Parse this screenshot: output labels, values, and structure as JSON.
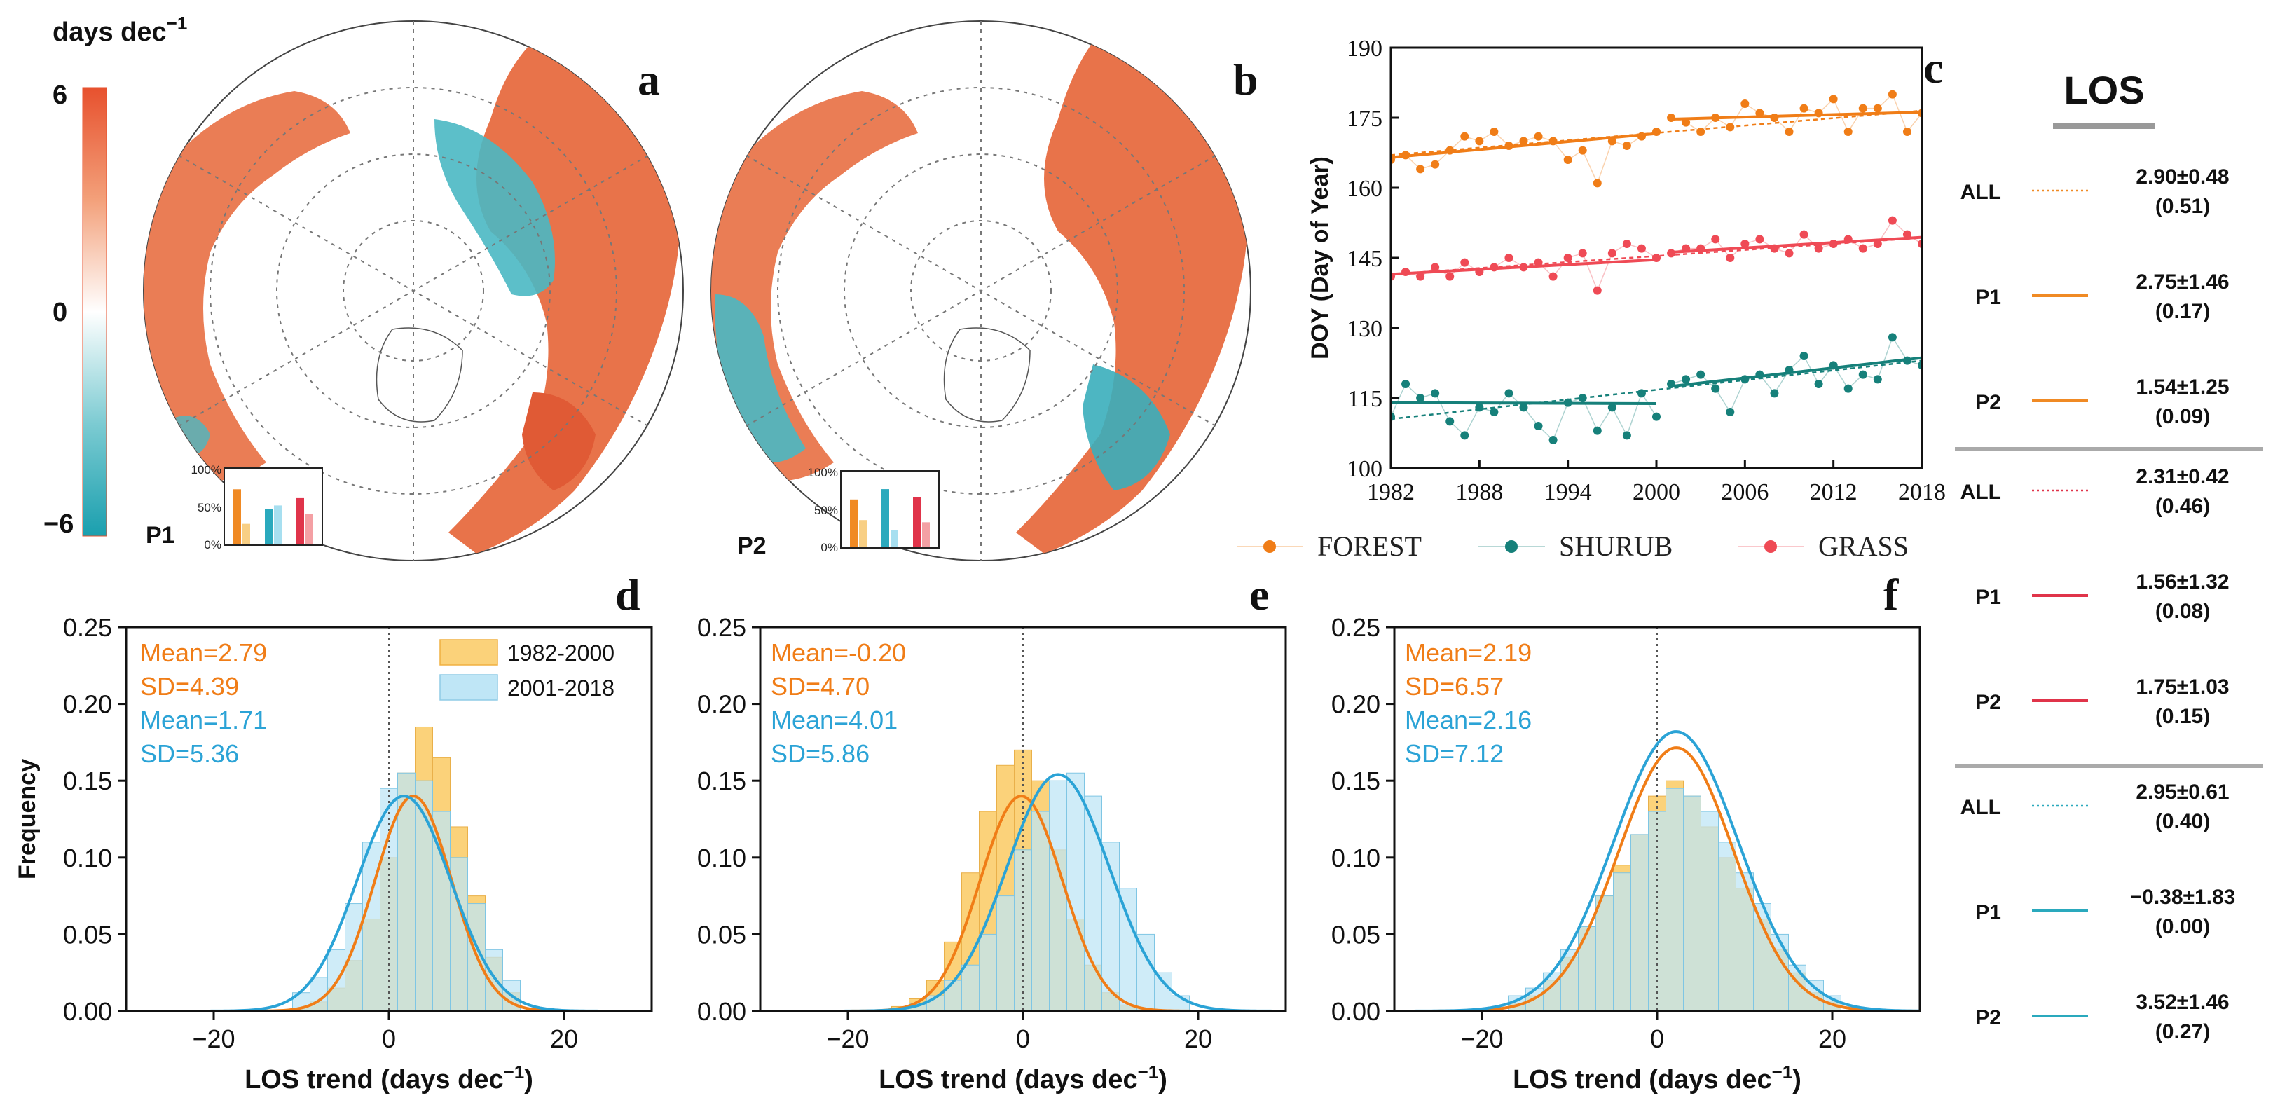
{
  "colorbar": {
    "title": "days dec",
    "title_sup": "−1",
    "max_label": "6",
    "mid_label": "0",
    "min_label": "−6",
    "colors": [
      "#e7512e",
      "#f08a5a",
      "#f9c6ae",
      "#ffffff",
      "#a6dde0",
      "#4ab8c3",
      "#1a9fae"
    ]
  },
  "maps": [
    {
      "panel": "a",
      "period": "P1",
      "inset": {
        "ticks": [
          "100%",
          "50%",
          "0%"
        ],
        "bars": [
          {
            "value": 0.74,
            "color": "#f08a24"
          },
          {
            "value": 0.27,
            "color": "#f8cf84"
          },
          {
            "value": 0.47,
            "color": "#2aa9bd"
          },
          {
            "value": 0.52,
            "color": "#a7dff0"
          },
          {
            "value": 0.62,
            "color": "#e0344a"
          },
          {
            "value": 0.4,
            "color": "#f4a0a4"
          }
        ]
      }
    },
    {
      "panel": "b",
      "period": "P2",
      "inset": {
        "ticks": [
          "100%",
          "50%",
          "0%"
        ],
        "bars": [
          {
            "value": 0.64,
            "color": "#f08a24"
          },
          {
            "value": 0.36,
            "color": "#f8cf84"
          },
          {
            "value": 0.78,
            "color": "#2aa9bd"
          },
          {
            "value": 0.22,
            "color": "#a7dff0"
          },
          {
            "value": 0.67,
            "color": "#e0344a"
          },
          {
            "value": 0.33,
            "color": "#f4a0a4"
          }
        ]
      }
    }
  ],
  "chart_data": [
    {
      "panel": "c",
      "type": "line",
      "ylabel": "DOY (Day of Year)",
      "xlim": [
        1982,
        2018
      ],
      "ylim": [
        100,
        190
      ],
      "xticks": [
        "1982",
        "1988",
        "1994",
        "2000",
        "2006",
        "2012",
        "2018"
      ],
      "yticks": [
        "100",
        "115",
        "130",
        "145",
        "160",
        "175",
        "190"
      ],
      "legend": [
        "FOREST",
        "SHURUB",
        "GRASS"
      ],
      "x": [
        1982,
        1983,
        1984,
        1985,
        1986,
        1987,
        1988,
        1989,
        1990,
        1991,
        1992,
        1993,
        1994,
        1995,
        1996,
        1997,
        1998,
        1999,
        2000,
        2001,
        2002,
        2003,
        2004,
        2005,
        2006,
        2007,
        2008,
        2009,
        2010,
        2011,
        2012,
        2013,
        2014,
        2015,
        2016,
        2017,
        2018
      ],
      "series": [
        {
          "name": "FOREST",
          "color": "#f07d17",
          "values": [
            166,
            167,
            164,
            165,
            168,
            171,
            170,
            172,
            169,
            170,
            171,
            170,
            166,
            168,
            161,
            170,
            169,
            171,
            172,
            175,
            174,
            172,
            175,
            173,
            178,
            176,
            175,
            172,
            177,
            176,
            179,
            172,
            177,
            177,
            180,
            172,
            176
          ],
          "trend_p1": [
            166.5,
            171.6
          ],
          "trend_p2": [
            174.7,
            176.2
          ],
          "trend_all": [
            167.0,
            176.5
          ]
        },
        {
          "name": "SHURUB",
          "color": "#16807a",
          "values": [
            111,
            118,
            115,
            116,
            110,
            107,
            113,
            112,
            116,
            113,
            109,
            106,
            114,
            115,
            108,
            113,
            107,
            116,
            111,
            118,
            119,
            120,
            117,
            112,
            119,
            120,
            116,
            121,
            124,
            118,
            122,
            117,
            120,
            119,
            128,
            123,
            122
          ],
          "trend_p1": [
            114.0,
            113.8
          ],
          "trend_p2": [
            117.5,
            123.6
          ],
          "trend_all": [
            110.5,
            123.0
          ]
        },
        {
          "name": "GRASS",
          "color": "#ef4a55",
          "values": [
            141,
            142,
            141,
            143,
            141,
            144,
            142,
            143,
            145,
            143,
            144,
            141,
            145,
            146,
            138,
            146,
            148,
            147,
            145,
            146,
            147,
            147,
            149,
            145,
            148,
            149,
            147,
            146,
            150,
            147,
            148,
            149,
            147,
            148,
            153,
            150,
            148
          ],
          "trend_p1": [
            141.5,
            144.6
          ],
          "trend_p2": [
            146.2,
            149.4
          ],
          "trend_all": [
            141.5,
            149.3
          ]
        }
      ]
    },
    {
      "panel": "d",
      "type": "bar",
      "xlabel": "LOS trend (days dec",
      "xlabel_sup": "−1",
      "xlabel_close": ")",
      "ylabel": "Frequency",
      "xlim": [
        -30,
        30
      ],
      "ylim": [
        0,
        0.25
      ],
      "xticks": [
        "−20",
        "0",
        "20"
      ],
      "yticks": [
        "0.00",
        "0.05",
        "0.10",
        "0.15",
        "0.20",
        "0.25"
      ],
      "stats": [
        "Mean=2.79",
        "SD=4.39",
        "Mean=1.71",
        "SD=5.36"
      ],
      "legend": [
        "1982-2000",
        "2001-2018"
      ],
      "bin_start": -11,
      "bin_width": 2,
      "series": [
        {
          "name": "1982-2000",
          "mean": 2.79,
          "sd": 4.39,
          "scale": 0.2,
          "values": [
            0.002,
            0.006,
            0.015,
            0.033,
            0.06,
            0.1,
            0.155,
            0.185,
            0.165,
            0.12,
            0.075,
            0.035,
            0.012
          ]
        },
        {
          "name": "2001-2018",
          "mean": 1.71,
          "sd": 5.36,
          "scale": 0.2,
          "values": [
            0.012,
            0.022,
            0.04,
            0.07,
            0.11,
            0.145,
            0.155,
            0.15,
            0.13,
            0.1,
            0.07,
            0.04,
            0.02
          ]
        }
      ]
    },
    {
      "panel": "e",
      "type": "bar",
      "xlabel": "LOS trend (days dec",
      "xlabel_sup": "−1",
      "xlabel_close": ")",
      "xlim": [
        -30,
        30
      ],
      "ylim": [
        0,
        0.25
      ],
      "xticks": [
        "−20",
        "0",
        "20"
      ],
      "yticks": [
        "0.00",
        "0.05",
        "0.10",
        "0.15",
        "0.20",
        "0.25"
      ],
      "stats": [
        "Mean=-0.20",
        "SD=4.70",
        "Mean=4.01",
        "SD=5.86"
      ],
      "bin_start": -15,
      "bin_width": 2,
      "series": [
        {
          "name": "1982-2000",
          "mean": -0.2,
          "sd": 4.7,
          "scale": 0.2,
          "values": [
            0.003,
            0.008,
            0.02,
            0.045,
            0.09,
            0.13,
            0.16,
            0.17,
            0.15,
            0.105,
            0.06,
            0.03,
            0.012,
            0.004,
            0.001,
            0,
            0
          ]
        },
        {
          "name": "2001-2018",
          "mean": 4.01,
          "sd": 5.86,
          "scale": 0.22,
          "values": [
            0.002,
            0.005,
            0.01,
            0.02,
            0.03,
            0.05,
            0.075,
            0.105,
            0.13,
            0.15,
            0.155,
            0.14,
            0.11,
            0.08,
            0.05,
            0.025,
            0.01
          ]
        }
      ]
    },
    {
      "panel": "f",
      "type": "bar",
      "xlabel": "LOS trend (days dec",
      "xlabel_sup": "−1",
      "xlabel_close": ")",
      "xlim": [
        -30,
        30
      ],
      "ylim": [
        0,
        0.25
      ],
      "xticks": [
        "−20",
        "0",
        "20"
      ],
      "yticks": [
        "0.00",
        "0.05",
        "0.10",
        "0.15",
        "0.20",
        "0.25"
      ],
      "stats": [
        "Mean=2.19",
        "SD=6.57",
        "Mean=2.16",
        "SD=7.12"
      ],
      "bin_start": -17,
      "bin_width": 2,
      "series": [
        {
          "name": "1982-2000",
          "mean": 2.19,
          "sd": 6.57,
          "scale": 0.245,
          "values": [
            0.005,
            0.01,
            0.02,
            0.035,
            0.055,
            0.075,
            0.095,
            0.115,
            0.14,
            0.15,
            0.14,
            0.12,
            0.1,
            0.08,
            0.06,
            0.04,
            0.025,
            0.012,
            0.006
          ]
        },
        {
          "name": "2001-2018",
          "mean": 2.16,
          "sd": 7.12,
          "scale": 0.26,
          "values": [
            0.01,
            0.015,
            0.025,
            0.04,
            0.055,
            0.075,
            0.09,
            0.115,
            0.13,
            0.145,
            0.14,
            0.13,
            0.11,
            0.09,
            0.07,
            0.05,
            0.03,
            0.02,
            0.01
          ]
        }
      ]
    }
  ],
  "legend_panel": {
    "title": "LOS",
    "groups": [
      {
        "color": "#f08a24",
        "rows": [
          {
            "label": "ALL",
            "value": "2.90±0.48",
            "r2": "(0.51)",
            "dashed": true
          },
          {
            "label": "P1",
            "value": "2.75±1.46",
            "r2": "(0.17)",
            "dashed": false
          },
          {
            "label": "P2",
            "value": "1.54±1.25",
            "r2": "(0.09)",
            "dashed": false
          }
        ]
      },
      {
        "color": "#e0344a",
        "rows": [
          {
            "label": "ALL",
            "value": "2.31±0.42",
            "r2": "(0.46)",
            "dashed": true
          },
          {
            "label": "P1",
            "value": "1.56±1.32",
            "r2": "(0.08)",
            "dashed": false
          },
          {
            "label": "P2",
            "value": "1.75±1.03",
            "r2": "(0.15)",
            "dashed": false
          }
        ]
      },
      {
        "color": "#2aa9bd",
        "rows": [
          {
            "label": "ALL",
            "value": "2.95±0.61",
            "r2": "(0.40)",
            "dashed": true
          },
          {
            "label": "P1",
            "value": "−0.38±1.83",
            "r2": "(0.00)",
            "dashed": false
          },
          {
            "label": "P2",
            "value": "3.52±1.46",
            "r2": "(0.27)",
            "dashed": false
          }
        ]
      }
    ]
  },
  "colors": {
    "orange_hist": "#fbd27a",
    "blue_hist": "#bfe6f6",
    "orange_curve": "#f07d17",
    "blue_curve": "#2ba3d6",
    "stats_orange": "#f07d17",
    "stats_blue": "#2ba3d6"
  }
}
